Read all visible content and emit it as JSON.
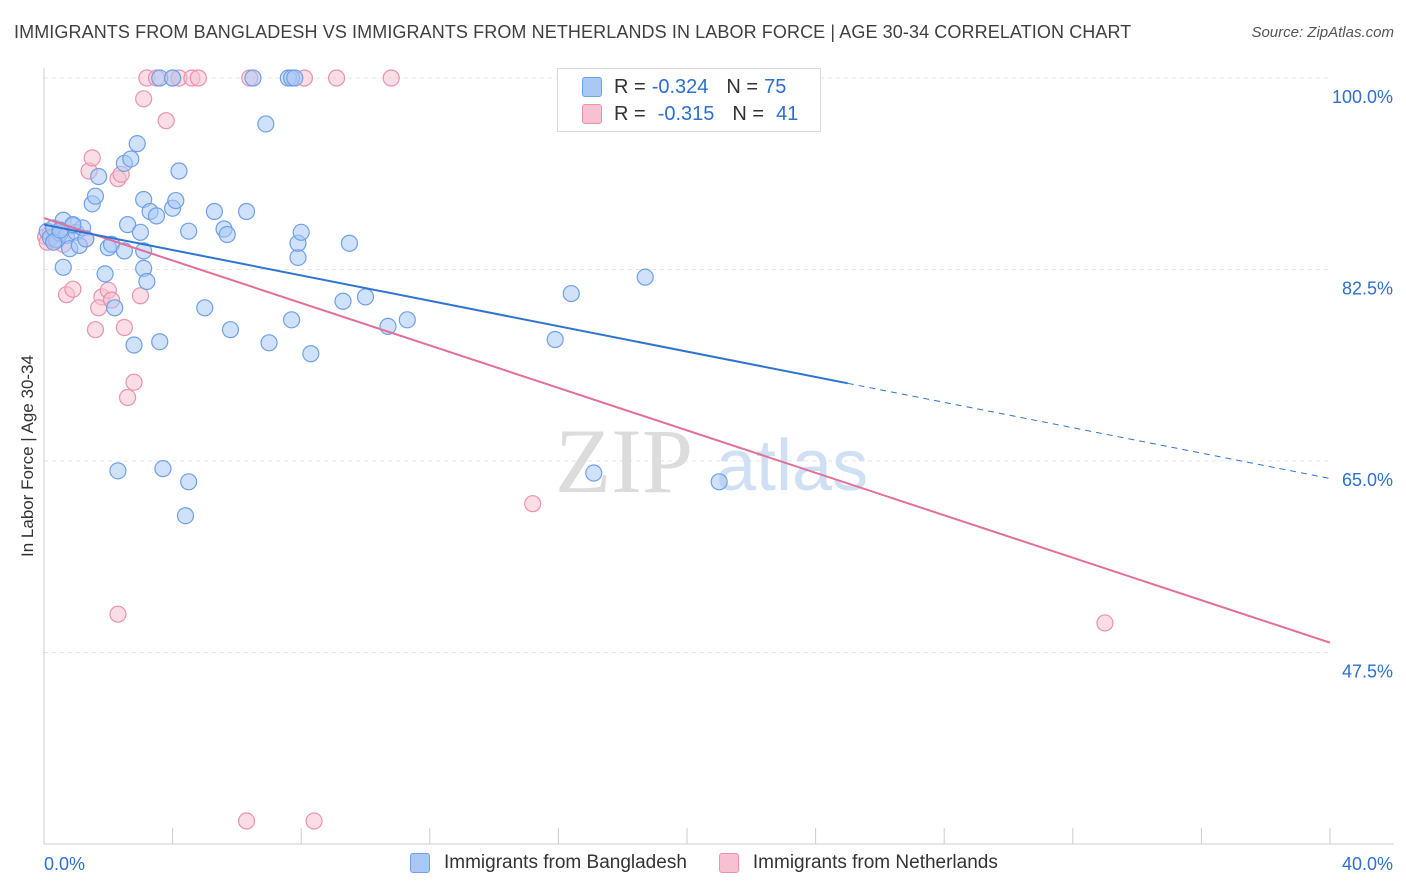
{
  "header": {
    "title": "IMMIGRANTS FROM BANGLADESH VS IMMIGRANTS FROM NETHERLANDS IN LABOR FORCE | AGE 30-34 CORRELATION CHART",
    "source": "Source: ZipAtlas.com"
  },
  "watermark": {
    "zip": "ZIP",
    "atlas": "atlas"
  },
  "colors": {
    "blue_fill": "#a9c8f5",
    "blue_stroke": "#6fa0e6",
    "blue_line": "#2f74d0",
    "pink_fill": "#f7c1d2",
    "pink_stroke": "#e992b0",
    "pink_line": "#e36f99",
    "tick_label": "#2f6fcf",
    "grid": "#e4e4e4"
  },
  "legend": {
    "r_label": "R =",
    "n_label": "N =",
    "series": [
      {
        "r": "-0.324",
        "n": "75"
      },
      {
        "r": "-0.315",
        "n": "41"
      }
    ]
  },
  "chart_data": {
    "type": "scatter",
    "title": "IMMIGRANTS FROM BANGLADESH VS IMMIGRANTS FROM NETHERLANDS IN LABOR FORCE | AGE 30-34 CORRELATION CHART",
    "xlabel": "",
    "ylabel": "In Labor Force | Age 30-34",
    "xlim": [
      0,
      40
    ],
    "ylim": [
      30,
      100
    ],
    "x_tick_labels": [
      "0.0%",
      "40.0%"
    ],
    "y_ticks": [
      47.5,
      65.0,
      82.5,
      100.0
    ],
    "y_tick_labels": [
      "47.5%",
      "65.0%",
      "82.5%",
      "100.0%"
    ],
    "grid": true,
    "legend_position": "top-center",
    "series": [
      {
        "name": "Immigrants from Bangladesh",
        "color": "#a9c8f5",
        "r": -0.324,
        "n": 75,
        "trend": {
          "x": [
            0,
            25
          ],
          "y": [
            86.6,
            72.1
          ]
        },
        "trend_dashed": {
          "x": [
            25,
            40
          ],
          "y": [
            72.1,
            63.4
          ]
        },
        "points": [
          [
            0.1,
            86.0
          ],
          [
            0.2,
            85.4
          ],
          [
            0.3,
            86.3
          ],
          [
            0.4,
            85.2
          ],
          [
            0.5,
            85.8
          ],
          [
            0.6,
            87.0
          ],
          [
            0.7,
            85.6
          ],
          [
            0.8,
            84.4
          ],
          [
            0.9,
            86.5
          ],
          [
            1.0,
            85.9
          ],
          [
            1.1,
            84.7
          ],
          [
            1.2,
            86.3
          ],
          [
            0.6,
            82.7
          ],
          [
            1.5,
            88.5
          ],
          [
            1.6,
            89.2
          ],
          [
            1.7,
            91.0
          ],
          [
            2.0,
            84.5
          ],
          [
            2.1,
            84.8
          ],
          [
            1.9,
            82.1
          ],
          [
            2.2,
            79.0
          ],
          [
            2.5,
            84.2
          ],
          [
            2.6,
            86.6
          ],
          [
            3.0,
            85.9
          ],
          [
            3.1,
            84.2
          ],
          [
            2.8,
            75.6
          ],
          [
            2.5,
            92.2
          ],
          [
            2.7,
            92.6
          ],
          [
            2.9,
            94.0
          ],
          [
            3.1,
            82.6
          ],
          [
            3.2,
            81.4
          ],
          [
            3.1,
            88.9
          ],
          [
            3.3,
            87.8
          ],
          [
            3.5,
            87.4
          ],
          [
            3.6,
            75.9
          ],
          [
            4.0,
            88.1
          ],
          [
            4.1,
            88.8
          ],
          [
            4.2,
            91.5
          ],
          [
            4.5,
            86.0
          ],
          [
            5.0,
            79.0
          ],
          [
            5.3,
            87.8
          ],
          [
            5.6,
            86.2
          ],
          [
            5.7,
            85.7
          ],
          [
            5.8,
            77.0
          ],
          [
            6.3,
            87.8
          ],
          [
            6.5,
            100.0
          ],
          [
            6.9,
            95.8
          ],
          [
            7.0,
            75.8
          ],
          [
            7.6,
            100.0
          ],
          [
            7.7,
            100.0
          ],
          [
            7.8,
            100.0
          ],
          [
            7.7,
            77.9
          ],
          [
            7.9,
            83.6
          ],
          [
            7.9,
            84.9
          ],
          [
            8.0,
            85.9
          ],
          [
            8.3,
            74.8
          ],
          [
            9.3,
            79.6
          ],
          [
            9.5,
            84.9
          ],
          [
            10.0,
            80.0
          ],
          [
            10.7,
            77.3
          ],
          [
            11.3,
            77.9
          ],
          [
            15.9,
            76.1
          ],
          [
            16.4,
            80.3
          ],
          [
            17.1,
            63.9
          ],
          [
            18.7,
            81.8
          ],
          [
            21.0,
            63.1
          ],
          [
            2.3,
            64.1
          ],
          [
            3.7,
            64.3
          ],
          [
            4.5,
            63.1
          ],
          [
            4.4,
            60.0
          ],
          [
            3.6,
            100.0
          ],
          [
            4.0,
            100.0
          ],
          [
            0.9,
            86.6
          ],
          [
            1.3,
            85.3
          ],
          [
            0.3,
            85.0
          ],
          [
            0.5,
            86.1
          ]
        ]
      },
      {
        "name": "Immigrants from Netherlands",
        "color": "#f7c1d2",
        "r": -0.315,
        "n": 41,
        "trend": {
          "x": [
            0,
            40
          ],
          "y": [
            87.2,
            48.4
          ]
        },
        "points": [
          [
            0.05,
            85.5
          ],
          [
            0.1,
            85.0
          ],
          [
            0.2,
            85.8
          ],
          [
            0.3,
            85.2
          ],
          [
            0.4,
            85.6
          ],
          [
            0.5,
            86.0
          ],
          [
            0.6,
            84.8
          ],
          [
            0.7,
            80.2
          ],
          [
            0.9,
            80.7
          ],
          [
            1.3,
            85.3
          ],
          [
            1.4,
            91.5
          ],
          [
            1.5,
            92.7
          ],
          [
            1.6,
            77.0
          ],
          [
            1.8,
            80.0
          ],
          [
            2.0,
            80.6
          ],
          [
            2.3,
            90.8
          ],
          [
            2.4,
            91.2
          ],
          [
            2.5,
            77.2
          ],
          [
            2.6,
            70.8
          ],
          [
            2.8,
            72.2
          ],
          [
            3.0,
            80.1
          ],
          [
            3.1,
            98.1
          ],
          [
            3.2,
            100.0
          ],
          [
            3.5,
            100.0
          ],
          [
            3.8,
            96.1
          ],
          [
            4.0,
            100.0
          ],
          [
            4.2,
            100.0
          ],
          [
            4.6,
            100.0
          ],
          [
            4.8,
            100.0
          ],
          [
            6.4,
            100.0
          ],
          [
            6.3,
            32.1
          ],
          [
            8.1,
            100.0
          ],
          [
            8.4,
            32.1
          ],
          [
            9.1,
            100.0
          ],
          [
            10.8,
            100.0
          ],
          [
            15.2,
            61.1
          ],
          [
            33.0,
            50.2
          ],
          [
            2.3,
            51.0
          ],
          [
            1.7,
            79.0
          ],
          [
            2.1,
            79.7
          ],
          [
            0.35,
            85.3
          ]
        ]
      }
    ]
  },
  "bottom_legend": {
    "items": [
      "Immigrants from Bangladesh",
      "Immigrants from Netherlands"
    ]
  }
}
